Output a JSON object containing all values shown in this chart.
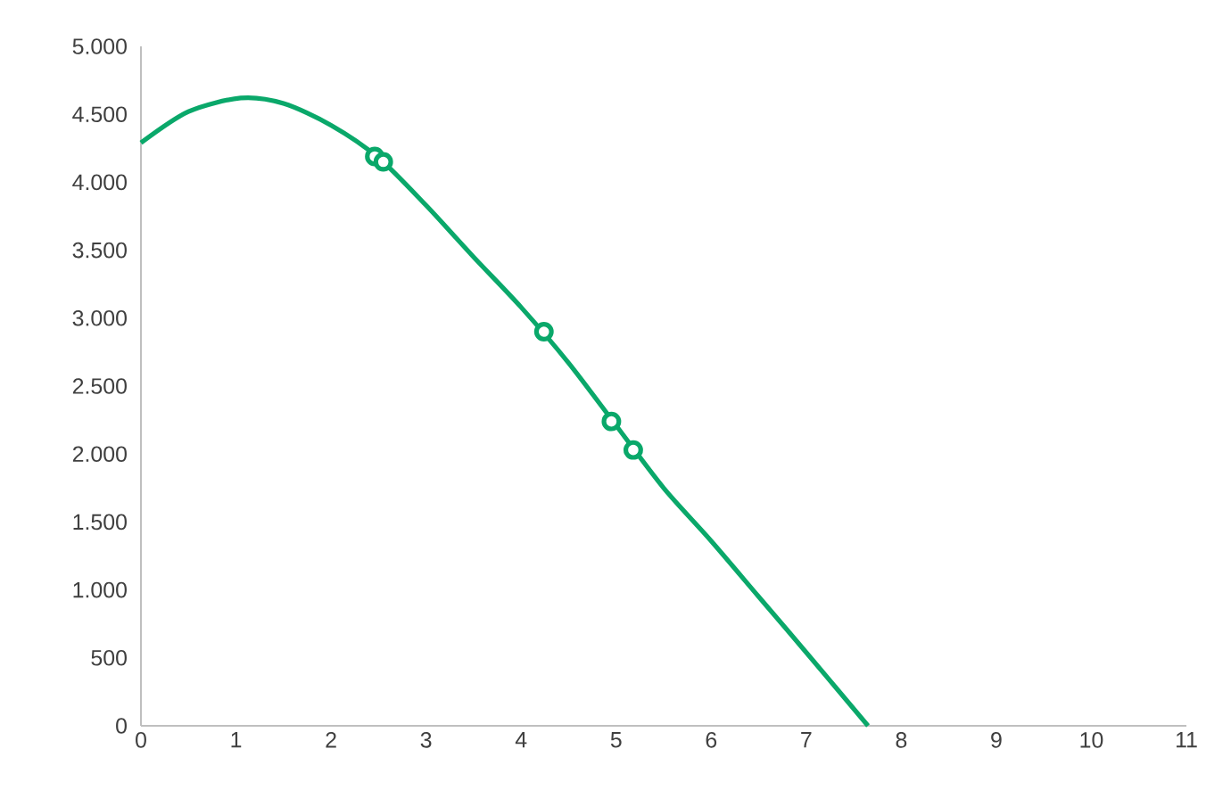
{
  "chart_data": {
    "type": "line",
    "series": [
      {
        "color": "#0aa86a",
        "x": [
          0,
          0.5,
          1.05,
          1.5,
          2,
          2.5,
          3,
          3.5,
          4,
          4.5,
          5,
          5.5,
          6,
          6.5,
          7,
          7.65
        ],
        "values": [
          4290,
          4520,
          4620,
          4580,
          4420,
          4180,
          3830,
          3450,
          3080,
          2670,
          2210,
          1750,
          1360,
          950,
          540,
          0
        ]
      },
      {
        "type": "scatter",
        "color": "#0aa86a",
        "x": [
          2.46,
          2.55,
          4.24,
          4.95,
          5.18
        ],
        "values": [
          4190,
          4150,
          2900,
          2240,
          2030
        ]
      }
    ],
    "xlim": [
      0,
      11
    ],
    "xticks": [
      0,
      1,
      2,
      3,
      4,
      5,
      6,
      7,
      8,
      9,
      10,
      11
    ],
    "ylim": [
      0,
      5000
    ],
    "yticks": [
      {
        "value": 0,
        "label": "0"
      },
      {
        "value": 500,
        "label": "500"
      },
      {
        "value": 1000,
        "label": "1.000"
      },
      {
        "value": 1500,
        "label": "1.500"
      },
      {
        "value": 2000,
        "label": "2.000"
      },
      {
        "value": 2500,
        "label": "2.500"
      },
      {
        "value": 3000,
        "label": "3.000"
      },
      {
        "value": 3500,
        "label": "3.500"
      },
      {
        "value": 4000,
        "label": "4.000"
      },
      {
        "value": 4500,
        "label": "4.500"
      },
      {
        "value": 5000,
        "label": "5.000"
      }
    ],
    "grid": false
  }
}
